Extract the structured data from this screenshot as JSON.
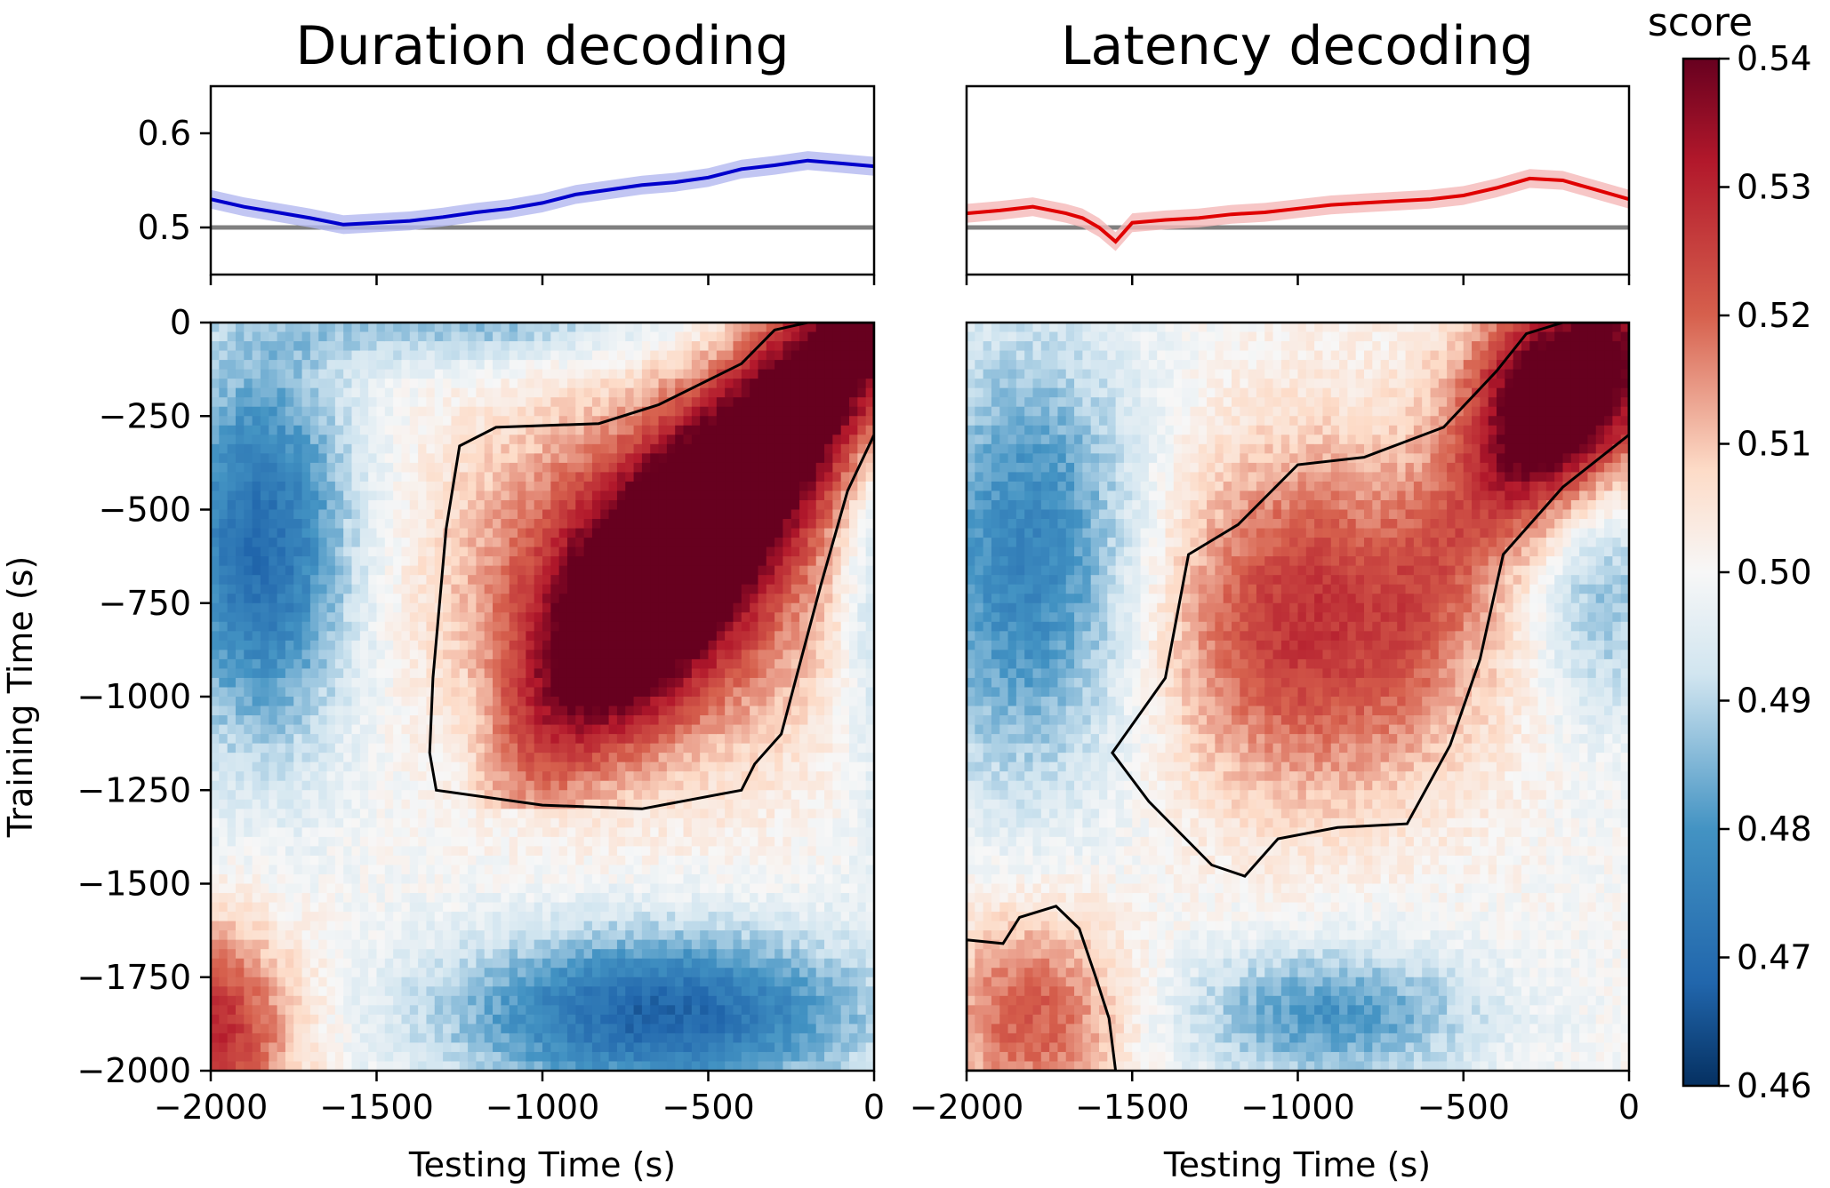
{
  "colors": {
    "duration_line": "#0000cc",
    "duration_band": "#b3b8f0",
    "latency_line": "#e00000",
    "latency_band": "#f5b8b8",
    "chance_line": "#808080",
    "colormap": "RdBu_r"
  },
  "chart_data": [
    {
      "type": "line",
      "panel": "duration-timecourse",
      "title": "Duration decoding",
      "xlim": [
        -2000,
        0
      ],
      "ylim": [
        0.45,
        0.65
      ],
      "yticks": [
        "0.6",
        "0.5"
      ],
      "yticks_values": [
        0.6,
        0.5
      ],
      "chance": 0.5,
      "series": [
        {
          "x": [
            -2000,
            -1900,
            -1800,
            -1700,
            -1600,
            -1500,
            -1400,
            -1300,
            -1200,
            -1100,
            -1000,
            -900,
            -800,
            -700,
            -600,
            -500,
            -400,
            -300,
            -200,
            -100,
            0
          ],
          "y": [
            0.53,
            0.522,
            0.516,
            0.51,
            0.503,
            0.505,
            0.507,
            0.511,
            0.516,
            0.52,
            0.526,
            0.535,
            0.54,
            0.545,
            0.548,
            0.553,
            0.562,
            0.566,
            0.571,
            0.568,
            0.565
          ]
        }
      ]
    },
    {
      "type": "line",
      "panel": "latency-timecourse",
      "title": "Latency decoding",
      "xlim": [
        -2000,
        0
      ],
      "ylim": [
        0.45,
        0.65
      ],
      "chance": 0.5,
      "series": [
        {
          "x": [
            -2000,
            -1900,
            -1800,
            -1700,
            -1650,
            -1600,
            -1550,
            -1500,
            -1400,
            -1300,
            -1200,
            -1100,
            -1000,
            -900,
            -800,
            -700,
            -600,
            -500,
            -400,
            -300,
            -200,
            -100,
            0
          ],
          "y": [
            0.515,
            0.518,
            0.522,
            0.515,
            0.51,
            0.5,
            0.485,
            0.505,
            0.508,
            0.51,
            0.514,
            0.516,
            0.52,
            0.524,
            0.526,
            0.528,
            0.53,
            0.534,
            0.542,
            0.552,
            0.55,
            0.54,
            0.53
          ]
        }
      ]
    },
    {
      "type": "heatmap",
      "panel": "duration-generalization",
      "xlabel": "Testing Time (s)",
      "ylabel": "Training Time (s)",
      "xlim": [
        -2000,
        0
      ],
      "ylim": [
        -2000,
        0
      ],
      "xticks": [
        "−2000",
        "−1500",
        "−1000",
        "−500",
        "0"
      ],
      "xticks_values": [
        -2000,
        -1500,
        -1000,
        -500,
        0
      ],
      "yticks": [
        "0",
        "−250",
        "−500",
        "−750",
        "−1000",
        "−1250",
        "−1500",
        "−1750",
        "−2000"
      ],
      "yticks_values": [
        0,
        -250,
        -500,
        -750,
        -1000,
        -1250,
        -1500,
        -1750,
        -2000
      ],
      "significance_contour": [
        [
          -1320,
          -1250
        ],
        [
          -1340,
          -1150
        ],
        [
          -1330,
          -950
        ],
        [
          -1290,
          -550
        ],
        [
          -1250,
          -330
        ],
        [
          -1140,
          -280
        ],
        [
          -830,
          -270
        ],
        [
          -650,
          -220
        ],
        [
          -400,
          -110
        ],
        [
          -300,
          -20
        ],
        [
          -200,
          0
        ],
        [
          0,
          0
        ],
        [
          0,
          -300
        ],
        [
          -80,
          -450
        ],
        [
          -160,
          -700
        ],
        [
          -220,
          -900
        ],
        [
          -280,
          -1100
        ],
        [
          -360,
          -1180
        ],
        [
          -400,
          -1250
        ],
        [
          -700,
          -1300
        ],
        [
          -1000,
          -1290
        ],
        [
          -1320,
          -1250
        ]
      ]
    },
    {
      "type": "heatmap",
      "panel": "latency-generalization",
      "xlabel": "Testing Time (s)",
      "xlim": [
        -2000,
        0
      ],
      "ylim": [
        -2000,
        0
      ],
      "xticks": [
        "−2000",
        "−1500",
        "−1000",
        "−500",
        "0"
      ],
      "xticks_values": [
        -2000,
        -1500,
        -1000,
        -500,
        0
      ],
      "significance_contour": [
        [
          -1560,
          -1150
        ],
        [
          -1400,
          -950
        ],
        [
          -1330,
          -620
        ],
        [
          -1180,
          -540
        ],
        [
          -1000,
          -380
        ],
        [
          -800,
          -360
        ],
        [
          -560,
          -280
        ],
        [
          -400,
          -130
        ],
        [
          -310,
          -30
        ],
        [
          -200,
          0
        ],
        [
          0,
          0
        ],
        [
          0,
          -300
        ],
        [
          -200,
          -440
        ],
        [
          -380,
          -620
        ],
        [
          -450,
          -900
        ],
        [
          -540,
          -1130
        ],
        [
          -670,
          -1340
        ],
        [
          -880,
          -1350
        ],
        [
          -1060,
          -1380
        ],
        [
          -1160,
          -1480
        ],
        [
          -1260,
          -1450
        ],
        [
          -1450,
          -1280
        ],
        [
          -1560,
          -1150
        ]
      ],
      "significance_contour_2": [
        [
          -2000,
          -1650
        ],
        [
          -1890,
          -1660
        ],
        [
          -1840,
          -1590
        ],
        [
          -1730,
          -1560
        ],
        [
          -1660,
          -1620
        ],
        [
          -1610,
          -1750
        ],
        [
          -1570,
          -1860
        ],
        [
          -1550,
          -2000
        ],
        [
          -2000,
          -2000
        ],
        [
          -2000,
          -1650
        ]
      ]
    },
    {
      "type": "heatmap",
      "panel": "colorbar",
      "title": "score",
      "ylim": [
        0.46,
        0.54
      ],
      "ticks": [
        "0.54",
        "0.53",
        "0.52",
        "0.51",
        "0.50",
        "0.49",
        "0.48",
        "0.47",
        "0.46"
      ],
      "ticks_values": [
        0.54,
        0.53,
        0.52,
        0.51,
        0.5,
        0.49,
        0.48,
        0.47,
        0.46
      ]
    }
  ]
}
